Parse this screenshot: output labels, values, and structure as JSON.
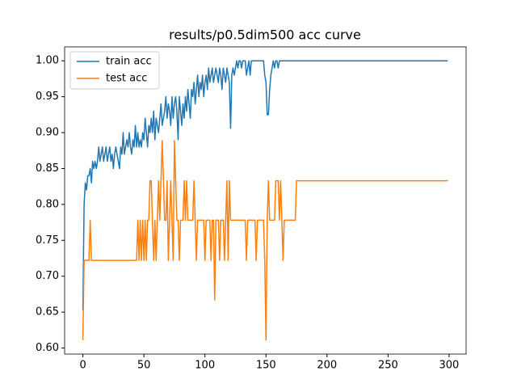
{
  "chart_data": {
    "type": "line",
    "title": "results/p0.5dim500 acc curve",
    "x": [
      0,
      1,
      2,
      3,
      4,
      5,
      6,
      7,
      8,
      9,
      10,
      11,
      12,
      13,
      14,
      15,
      16,
      17,
      18,
      19,
      20,
      21,
      22,
      23,
      24,
      25,
      26,
      27,
      28,
      29,
      30,
      31,
      32,
      33,
      34,
      35,
      36,
      37,
      38,
      39,
      40,
      41,
      42,
      43,
      44,
      45,
      46,
      47,
      48,
      49,
      50,
      51,
      52,
      53,
      54,
      55,
      56,
      57,
      58,
      59,
      60,
      61,
      62,
      63,
      64,
      65,
      66,
      67,
      68,
      69,
      70,
      71,
      72,
      73,
      74,
      75,
      76,
      77,
      78,
      79,
      80,
      81,
      82,
      83,
      84,
      85,
      86,
      87,
      88,
      89,
      90,
      91,
      92,
      93,
      94,
      95,
      96,
      97,
      98,
      99,
      100,
      101,
      102,
      103,
      104,
      105,
      106,
      107,
      108,
      109,
      110,
      111,
      112,
      113,
      114,
      115,
      116,
      117,
      118,
      119,
      120,
      121,
      122,
      123,
      124,
      125,
      126,
      127,
      128,
      129,
      130,
      131,
      132,
      133,
      134,
      135,
      136,
      137,
      138,
      139,
      140,
      141,
      142,
      143,
      144,
      145,
      146,
      147,
      148,
      149,
      150,
      151,
      152,
      153,
      154,
      155,
      156,
      157,
      158,
      159,
      160,
      161,
      162,
      163,
      164,
      165,
      166,
      167,
      168,
      169,
      170,
      171,
      172,
      173,
      174,
      175,
      176,
      177,
      178,
      179,
      180,
      181,
      182,
      183,
      184,
      185,
      186,
      187,
      188,
      189,
      190,
      191,
      192,
      193,
      194,
      195,
      196,
      197,
      198,
      199,
      200,
      201,
      202,
      203,
      204,
      205,
      206,
      207,
      208,
      209,
      210,
      211,
      212,
      213,
      214,
      215,
      216,
      217,
      218,
      219,
      220,
      221,
      222,
      223,
      224,
      225,
      226,
      227,
      228,
      229,
      230,
      231,
      232,
      233,
      234,
      235,
      236,
      237,
      238,
      239,
      240,
      241,
      242,
      243,
      244,
      245,
      246,
      247,
      248,
      249,
      250,
      251,
      252,
      253,
      254,
      255,
      256,
      257,
      258,
      259,
      260,
      261,
      262,
      263,
      264,
      265,
      266,
      267,
      268,
      269,
      270,
      271,
      272,
      273,
      274,
      275,
      276,
      277,
      278,
      279,
      280,
      281,
      282,
      283,
      284,
      285,
      286,
      287,
      288,
      289,
      290,
      291,
      292,
      293,
      294,
      295,
      296,
      297,
      298,
      299
    ],
    "series": [
      {
        "name": "train acc",
        "color": "#1f77b4",
        "values": [
          0.653,
          0.8,
          0.83,
          0.82,
          0.84,
          0.84,
          0.85,
          0.83,
          0.86,
          0.85,
          0.86,
          0.85,
          0.86,
          0.88,
          0.86,
          0.87,
          0.88,
          0.86,
          0.87,
          0.88,
          0.86,
          0.87,
          0.88,
          0.86,
          0.87,
          0.85,
          0.87,
          0.88,
          0.87,
          0.86,
          0.85,
          0.88,
          0.87,
          0.9,
          0.87,
          0.88,
          0.89,
          0.88,
          0.9,
          0.88,
          0.87,
          0.89,
          0.88,
          0.91,
          0.88,
          0.9,
          0.88,
          0.89,
          0.88,
          0.9,
          0.89,
          0.92,
          0.9,
          0.88,
          0.91,
          0.9,
          0.92,
          0.9,
          0.93,
          0.89,
          0.92,
          0.91,
          0.9,
          0.92,
          0.94,
          0.91,
          0.92,
          0.93,
          0.95,
          0.92,
          0.94,
          0.93,
          0.91,
          0.95,
          0.92,
          0.94,
          0.95,
          0.93,
          0.89,
          0.95,
          0.93,
          0.91,
          0.94,
          0.92,
          0.95,
          0.93,
          0.96,
          0.94,
          0.92,
          0.96,
          0.95,
          0.97,
          0.94,
          0.96,
          0.98,
          0.95,
          0.97,
          0.96,
          0.98,
          0.95,
          0.97,
          0.98,
          0.96,
          0.99,
          0.97,
          0.98,
          0.99,
          0.97,
          0.98,
          0.99,
          0.98,
          0.97,
          0.99,
          0.98,
          0.96,
          0.99,
          0.98,
          0.97,
          0.99,
          0.98,
          0.97,
          0.906,
          0.98,
          0.99,
          0.98,
          0.99,
          1.0,
          0.99,
          1.0,
          1.0,
          0.99,
          1.0,
          1.0,
          1.0,
          0.98,
          0.99,
          1.0,
          0.98,
          1.0,
          1.0,
          1.0,
          1.0,
          1.0,
          1.0,
          1.0,
          1.0,
          1.0,
          1.0,
          1.0,
          0.98,
          0.97,
          0.925,
          0.925,
          0.96,
          0.98,
          0.99,
          1.0,
          0.99,
          1.0,
          1.0,
          0.99,
          1.0,
          1.0,
          1.0,
          1.0,
          1.0,
          1.0,
          1.0,
          1.0,
          1.0,
          1.0,
          1.0,
          1.0,
          1.0,
          1.0,
          1.0,
          1.0,
          1.0,
          1.0,
          1.0,
          1.0,
          1.0,
          1.0,
          1.0,
          1.0,
          1.0,
          1.0,
          1.0,
          1.0,
          1.0,
          1.0,
          1.0,
          1.0,
          1.0,
          1.0,
          1.0,
          1.0,
          1.0,
          1.0,
          1.0,
          1.0,
          1.0,
          1.0,
          1.0,
          1.0,
          1.0,
          1.0,
          1.0,
          1.0,
          1.0,
          1.0,
          1.0,
          1.0,
          1.0,
          1.0,
          1.0,
          1.0,
          1.0,
          1.0,
          1.0,
          1.0,
          1.0,
          1.0,
          1.0,
          1.0,
          1.0,
          1.0,
          1.0,
          1.0,
          1.0,
          1.0,
          1.0,
          1.0,
          1.0,
          1.0,
          1.0,
          1.0,
          1.0,
          1.0,
          1.0,
          1.0,
          1.0,
          1.0,
          1.0,
          1.0,
          1.0,
          1.0,
          1.0,
          1.0,
          1.0,
          1.0,
          1.0,
          1.0,
          1.0,
          1.0,
          1.0,
          1.0,
          1.0,
          1.0,
          1.0,
          1.0,
          1.0,
          1.0,
          1.0,
          1.0,
          1.0,
          1.0,
          1.0,
          1.0,
          1.0,
          1.0,
          1.0,
          1.0,
          1.0,
          1.0,
          1.0,
          1.0,
          1.0,
          1.0,
          1.0,
          1.0,
          1.0,
          1.0,
          1.0,
          1.0,
          1.0,
          1.0,
          1.0,
          1.0,
          1.0,
          1.0,
          1.0,
          1.0,
          1.0,
          1.0,
          1.0,
          1.0,
          1.0,
          1.0,
          1.0
        ]
      },
      {
        "name": "test acc",
        "color": "#ff7f0e",
        "values": [
          0.611,
          0.722,
          0.722,
          0.722,
          0.722,
          0.722,
          0.778,
          0.722,
          0.722,
          0.722,
          0.722,
          0.722,
          0.722,
          0.722,
          0.722,
          0.722,
          0.722,
          0.722,
          0.722,
          0.722,
          0.722,
          0.722,
          0.722,
          0.722,
          0.722,
          0.722,
          0.722,
          0.722,
          0.722,
          0.722,
          0.722,
          0.722,
          0.722,
          0.722,
          0.722,
          0.722,
          0.722,
          0.722,
          0.722,
          0.722,
          0.722,
          0.722,
          0.722,
          0.722,
          0.722,
          0.778,
          0.722,
          0.778,
          0.722,
          0.778,
          0.722,
          0.778,
          0.722,
          0.778,
          0.778,
          0.833,
          0.833,
          0.778,
          0.722,
          0.778,
          0.722,
          0.778,
          0.833,
          0.778,
          0.833,
          0.889,
          0.833,
          0.778,
          0.778,
          0.833,
          0.722,
          0.778,
          0.833,
          0.778,
          0.722,
          0.889,
          0.833,
          0.778,
          0.778,
          0.722,
          0.778,
          0.778,
          0.778,
          0.833,
          0.778,
          0.833,
          0.778,
          0.778,
          0.778,
          0.778,
          0.778,
          0.833,
          0.778,
          0.722,
          0.778,
          0.778,
          0.778,
          0.778,
          0.778,
          0.778,
          0.722,
          0.778,
          0.778,
          0.778,
          0.778,
          0.722,
          0.778,
          0.778,
          0.667,
          0.778,
          0.778,
          0.778,
          0.722,
          0.778,
          0.778,
          0.778,
          0.722,
          0.778,
          0.833,
          0.722,
          0.833,
          0.778,
          0.778,
          0.778,
          0.778,
          0.778,
          0.778,
          0.778,
          0.778,
          0.778,
          0.778,
          0.778,
          0.778,
          0.778,
          0.722,
          0.778,
          0.778,
          0.778,
          0.778,
          0.778,
          0.778,
          0.778,
          0.722,
          0.778,
          0.778,
          0.778,
          0.778,
          0.778,
          0.778,
          0.722,
          0.611,
          0.778,
          0.833,
          0.778,
          0.778,
          0.778,
          0.778,
          0.778,
          0.833,
          0.833,
          0.833,
          0.778,
          0.833,
          0.778,
          0.722,
          0.778,
          0.778,
          0.778,
          0.778,
          0.778,
          0.778,
          0.778,
          0.778,
          0.778,
          0.778,
          0.833,
          0.833,
          0.833,
          0.833,
          0.833,
          0.833,
          0.833,
          0.833,
          0.833,
          0.833,
          0.833,
          0.833,
          0.833,
          0.833,
          0.833,
          0.833,
          0.833,
          0.833,
          0.833,
          0.833,
          0.833,
          0.833,
          0.833,
          0.833,
          0.833,
          0.833,
          0.833,
          0.833,
          0.833,
          0.833,
          0.833,
          0.833,
          0.833,
          0.833,
          0.833,
          0.833,
          0.833,
          0.833,
          0.833,
          0.833,
          0.833,
          0.833,
          0.833,
          0.833,
          0.833,
          0.833,
          0.833,
          0.833,
          0.833,
          0.833,
          0.833,
          0.833,
          0.833,
          0.833,
          0.833,
          0.833,
          0.833,
          0.833,
          0.833,
          0.833,
          0.833,
          0.833,
          0.833,
          0.833,
          0.833,
          0.833,
          0.833,
          0.833,
          0.833,
          0.833,
          0.833,
          0.833,
          0.833,
          0.833,
          0.833,
          0.833,
          0.833,
          0.833,
          0.833,
          0.833,
          0.833,
          0.833,
          0.833,
          0.833,
          0.833,
          0.833,
          0.833,
          0.833,
          0.833,
          0.833,
          0.833,
          0.833,
          0.833,
          0.833,
          0.833,
          0.833,
          0.833,
          0.833,
          0.833,
          0.833,
          0.833,
          0.833,
          0.833,
          0.833,
          0.833,
          0.833,
          0.833,
          0.833,
          0.833,
          0.833,
          0.833,
          0.833,
          0.833,
          0.833,
          0.833,
          0.833,
          0.833,
          0.833,
          0.833,
          0.833,
          0.833,
          0.833,
          0.833,
          0.833,
          0.833
        ]
      }
    ],
    "xlim": [
      -14.95,
      313.95
    ],
    "ylim": [
      0.5916,
      1.0194
    ],
    "xticks": [
      0,
      50,
      100,
      150,
      200,
      250,
      300
    ],
    "yticks": [
      {
        "value": 0.6,
        "label": "0.60"
      },
      {
        "value": 0.65,
        "label": "0.65"
      },
      {
        "value": 0.7,
        "label": "0.70"
      },
      {
        "value": 0.75,
        "label": "0.75"
      },
      {
        "value": 0.8,
        "label": "0.80"
      },
      {
        "value": 0.85,
        "label": "0.85"
      },
      {
        "value": 0.9,
        "label": "0.90"
      },
      {
        "value": 0.95,
        "label": "0.95"
      },
      {
        "value": 1.0,
        "label": "1.00"
      }
    ],
    "legend": "upper left"
  }
}
